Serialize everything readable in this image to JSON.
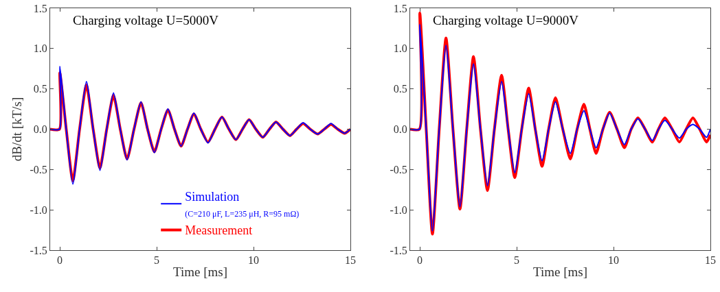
{
  "chart_data": [
    {
      "type": "line",
      "title": "Charging voltage U=5000V",
      "xlabel": "Time [ms]",
      "ylabel": "dB/dt [kT/s]",
      "annotations": [
        "(C=210 μF, L=235 μH, R=95 mΩ)"
      ],
      "x": [
        -0.5,
        -0.02,
        0,
        0.33,
        0.67,
        1.02,
        1.37,
        1.72,
        2.07,
        2.42,
        2.77,
        3.12,
        3.47,
        3.83,
        4.19,
        4.53,
        4.88,
        5.23,
        5.58,
        5.92,
        6.26,
        6.59,
        6.92,
        7.28,
        7.65,
        8.01,
        8.37,
        8.73,
        9.09,
        9.43,
        9.77,
        10.12,
        10.48,
        10.82,
        11.16,
        11.52,
        11.88,
        12.22,
        12.56,
        12.93,
        13.31,
        13.65,
        14.0,
        14.35,
        14.7,
        15
      ],
      "series": [
        {
          "name": "Simulation",
          "color": "#0000ff",
          "values": [
            0,
            0,
            0.78,
            0,
            -0.68,
            0,
            0.59,
            0,
            -0.51,
            0,
            0.45,
            0,
            -0.38,
            0,
            0.34,
            0,
            -0.29,
            0,
            0.25,
            0,
            -0.21,
            0,
            0.2,
            0,
            -0.17,
            0,
            0.15,
            0,
            -0.13,
            0,
            0.12,
            0,
            -0.1,
            0,
            0.09,
            0,
            -0.08,
            0,
            0.08,
            0,
            -0.06,
            0,
            0.07,
            0,
            -0.05,
            0
          ]
        },
        {
          "name": "Measurement",
          "color": "#ff0000",
          "values": [
            0,
            0,
            0.7,
            0,
            -0.64,
            0,
            0.55,
            0,
            -0.48,
            0,
            0.42,
            0,
            -0.37,
            0,
            0.33,
            0,
            -0.28,
            0,
            0.24,
            0,
            -0.21,
            0,
            0.19,
            0,
            -0.16,
            0,
            0.15,
            0,
            -0.13,
            0,
            0.12,
            0,
            -0.1,
            0,
            0.09,
            0,
            -0.08,
            0,
            0.07,
            0,
            -0.06,
            0,
            0.06,
            0,
            -0.05,
            0
          ]
        }
      ],
      "xlim": [
        -0.5,
        15
      ],
      "xticks": [
        0,
        5,
        10,
        15
      ],
      "ylim": [
        -1.5,
        1.5
      ],
      "yticks": [
        {
          "value": -1.5,
          "label": "-1.5"
        },
        {
          "value": -1,
          "label": "-1.0"
        },
        {
          "value": -0.5,
          "label": "-0.5"
        },
        {
          "value": 0,
          "label": "0.0"
        },
        {
          "value": 0.5,
          "label": "0.5"
        },
        {
          "value": 1,
          "label": "1.0"
        },
        {
          "value": 1.5,
          "label": "1.5"
        }
      ],
      "grid": false,
      "legend": "bottom"
    },
    {
      "type": "line",
      "title": "Charging voltage U=9000V",
      "xlabel": "Time [ms]",
      "x": [
        -0.5,
        -0.02,
        0,
        0.33,
        0.65,
        1.0,
        1.35,
        1.71,
        2.07,
        2.42,
        2.77,
        3.13,
        3.49,
        3.85,
        4.22,
        4.56,
        4.9,
        5.26,
        5.62,
        5.96,
        6.31,
        6.65,
        7.0,
        7.38,
        7.77,
        8.12,
        8.47,
        8.78,
        9.1,
        9.45,
        9.8,
        10.18,
        10.56,
        10.91,
        11.26,
        11.63,
        12.0,
        12.32,
        12.65,
        13.03,
        13.4,
        13.75,
        14.1,
        14.45,
        14.8,
        15
      ],
      "series": [
        {
          "color": "#0000ff",
          "values": [
            0,
            0,
            1.3,
            0,
            -1.26,
            0,
            1.04,
            0,
            -0.96,
            0,
            0.81,
            0,
            -0.7,
            0,
            0.59,
            0,
            -0.54,
            0,
            0.44,
            0,
            -0.39,
            0,
            0.34,
            0,
            -0.3,
            0,
            0.23,
            0,
            -0.23,
            0,
            0.2,
            0,
            -0.19,
            0,
            0.13,
            0,
            -0.14,
            0,
            0.11,
            0,
            -0.11,
            0,
            0.06,
            0,
            -0.1,
            0
          ]
        },
        {
          "color": "#ff0000",
          "values": [
            0,
            0,
            1.44,
            0,
            -1.3,
            0,
            1.13,
            0,
            -0.99,
            0,
            0.9,
            0,
            -0.76,
            0,
            0.67,
            0,
            -0.6,
            0,
            0.51,
            0,
            -0.46,
            0,
            0.39,
            0,
            -0.37,
            0,
            0.31,
            0,
            -0.3,
            0,
            0.21,
            0,
            -0.23,
            0,
            0.14,
            0,
            -0.16,
            0,
            0.14,
            0,
            -0.16,
            0,
            0.14,
            0,
            -0.16,
            -0.07
          ]
        }
      ],
      "xlim": [
        -0.5,
        15
      ],
      "xticks": [
        0,
        5,
        10,
        15
      ],
      "ylim": [
        -1.5,
        1.5
      ],
      "yticks": [
        {
          "value": -1.5,
          "label": "-1.5"
        },
        {
          "value": -1,
          "label": "-1.0"
        },
        {
          "value": -0.5,
          "label": "-0.5"
        },
        {
          "value": 0,
          "label": "0.0"
        },
        {
          "value": 0.5,
          "label": "0.5"
        },
        {
          "value": 1,
          "label": "1.0"
        },
        {
          "value": 1.5,
          "label": "1.5"
        }
      ],
      "grid": false,
      "legend": false
    }
  ]
}
